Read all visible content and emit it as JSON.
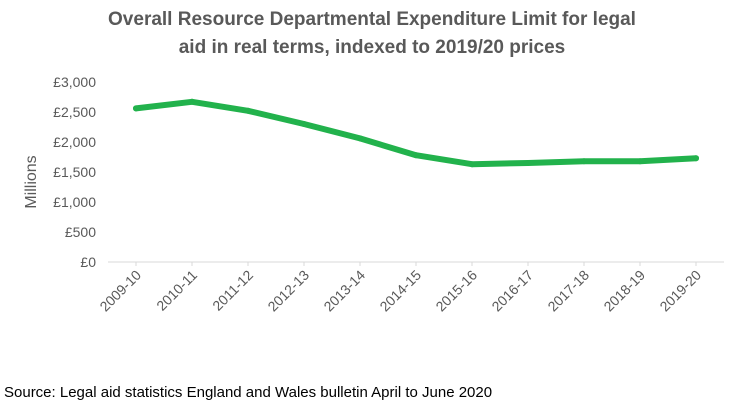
{
  "chart_data": {
    "type": "line",
    "title_line1": "Overall Resource Departmental Expenditure Limit for legal",
    "title_line2": "aid in real terms, indexed to 2019/20 prices",
    "ylabel": "Millions",
    "xlabel": "",
    "categories": [
      "2009-10",
      "2010-11",
      "2011-12",
      "2012-13",
      "2013-14",
      "2014-15",
      "2015-16",
      "2016-17",
      "2017-18",
      "2018-19",
      "2019-20"
    ],
    "series": [
      {
        "values": [
          2560,
          2670,
          2520,
          2300,
          2060,
          1780,
          1630,
          1650,
          1680,
          1680,
          1730
        ],
        "color": "#22b24c"
      }
    ],
    "ylim": [
      0,
      3000
    ],
    "yticks": [
      "£0",
      "£500",
      "£1,000",
      "£1,500",
      "£2,000",
      "£2,500",
      "£3,000"
    ],
    "grid": false,
    "legend": "none"
  },
  "source": "Source: Legal aid statistics England and Wales bulletin April to June 2020"
}
